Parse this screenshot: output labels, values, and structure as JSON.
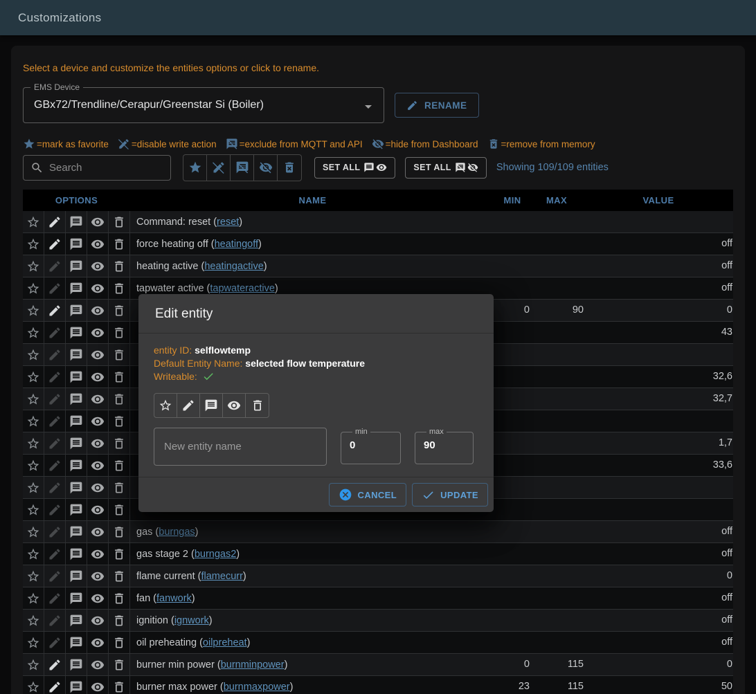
{
  "app_bar": {
    "title": "Customizations"
  },
  "hint": "Select a device and customize the entities options or click to rename.",
  "device_select": {
    "label": "EMS Device",
    "value": "GBx72/Trendline/Cerapur/Greenstar Si (Boiler)"
  },
  "rename_button": "RENAME",
  "legend": [
    {
      "icon": "star-filled",
      "text": "=mark as favorite"
    },
    {
      "icon": "pencil-off",
      "text": "=disable write action"
    },
    {
      "icon": "comment-off",
      "text": "=exclude from MQTT and API"
    },
    {
      "icon": "eye-off",
      "text": "=hide from Dashboard"
    },
    {
      "icon": "trash-x",
      "text": "=remove from memory"
    }
  ],
  "toolbar": {
    "search_placeholder": "Search",
    "filter_icons": [
      "star-filled",
      "pencil-off",
      "comment-off",
      "eye-off",
      "trash-x"
    ],
    "set_all_1": {
      "label": "SET ALL",
      "icons": [
        "comment",
        "eye"
      ]
    },
    "set_all_2": {
      "label": "SET ALL",
      "icons": [
        "comment-off",
        "eye-off"
      ]
    },
    "showing": "Showing 109/109 entities"
  },
  "table": {
    "headers": {
      "options": "OPTIONS",
      "name": "NAME",
      "min": "MIN",
      "max": "MAX",
      "value": "VALUE"
    },
    "rows": [
      {
        "name": "Command: reset",
        "id": "reset",
        "writeable": true,
        "min": "",
        "max": "",
        "value": ""
      },
      {
        "name": "force heating off",
        "id": "heatingoff",
        "writeable": true,
        "min": "",
        "max": "",
        "value": "off"
      },
      {
        "name": "heating active",
        "id": "heatingactive",
        "writeable": false,
        "min": "",
        "max": "",
        "value": "off"
      },
      {
        "name": "tapwater active",
        "id": "tapwateractive",
        "writeable": false,
        "min": "",
        "max": "",
        "value": "off"
      },
      {
        "name": "",
        "id": "",
        "writeable": true,
        "min": "0",
        "max": "90",
        "value": "0"
      },
      {
        "name": "",
        "id": "",
        "writeable": false,
        "min": "",
        "max": "",
        "value": "43"
      },
      {
        "name": "",
        "id": "",
        "writeable": false,
        "min": "",
        "max": "",
        "value": ""
      },
      {
        "name": "",
        "id": "",
        "writeable": false,
        "min": "",
        "max": "",
        "value": "32,6"
      },
      {
        "name": "",
        "id": "",
        "writeable": false,
        "min": "",
        "max": "",
        "value": "32,7"
      },
      {
        "name": "",
        "id": "",
        "writeable": false,
        "min": "",
        "max": "",
        "value": ""
      },
      {
        "name": "",
        "id": "",
        "writeable": false,
        "min": "",
        "max": "",
        "value": "1,7"
      },
      {
        "name": "",
        "id": "",
        "writeable": false,
        "min": "",
        "max": "",
        "value": "33,6"
      },
      {
        "name": "",
        "id": "",
        "writeable": false,
        "min": "",
        "max": "",
        "value": ""
      },
      {
        "name": "",
        "id": "",
        "writeable": false,
        "min": "",
        "max": "",
        "value": ""
      },
      {
        "name": "gas",
        "id": "burngas",
        "writeable": false,
        "min": "",
        "max": "",
        "value": "off"
      },
      {
        "name": "gas stage 2",
        "id": "burngas2",
        "writeable": false,
        "min": "",
        "max": "",
        "value": "off"
      },
      {
        "name": "flame current",
        "id": "flamecurr",
        "writeable": false,
        "min": "",
        "max": "",
        "value": "0"
      },
      {
        "name": "fan",
        "id": "fanwork",
        "writeable": false,
        "min": "",
        "max": "",
        "value": "off"
      },
      {
        "name": "ignition",
        "id": "ignwork",
        "writeable": false,
        "min": "",
        "max": "",
        "value": "off"
      },
      {
        "name": "oil preheating",
        "id": "oilpreheat",
        "writeable": false,
        "min": "",
        "max": "",
        "value": "off"
      },
      {
        "name": "burner min power",
        "id": "burnminpower",
        "writeable": true,
        "min": "0",
        "max": "115",
        "value": "0"
      },
      {
        "name": "burner max power",
        "id": "burnmaxpower",
        "writeable": true,
        "min": "23",
        "max": "115",
        "value": "50"
      },
      {
        "name": "",
        "id": "",
        "writeable": false,
        "min": "",
        "max": "",
        "value": ""
      }
    ]
  },
  "dialog": {
    "title": "Edit entity",
    "entity_id_label": "entity ID:",
    "entity_id": "selflowtemp",
    "default_name_label": "Default Entity Name:",
    "default_name": "selected flow temperature",
    "writeable_label": "Writeable:",
    "state_icons": [
      "star",
      "pencil",
      "comment",
      "eye",
      "trash"
    ],
    "name_placeholder": "New entity name",
    "min_label": "min",
    "min_value": "0",
    "max_label": "max",
    "max_value": "90",
    "cancel_label": "CANCEL",
    "update_label": "UPDATE"
  },
  "colors": {
    "app_bar": "#253741",
    "hint_orange": "#d88c2d",
    "header_blue": "#4d7ba8",
    "link_blue": "#5f93bd",
    "toolbar_icon_blue": "#4d7698",
    "button_blue": "#5ea0d8",
    "writeable_green": "#5cb860"
  }
}
